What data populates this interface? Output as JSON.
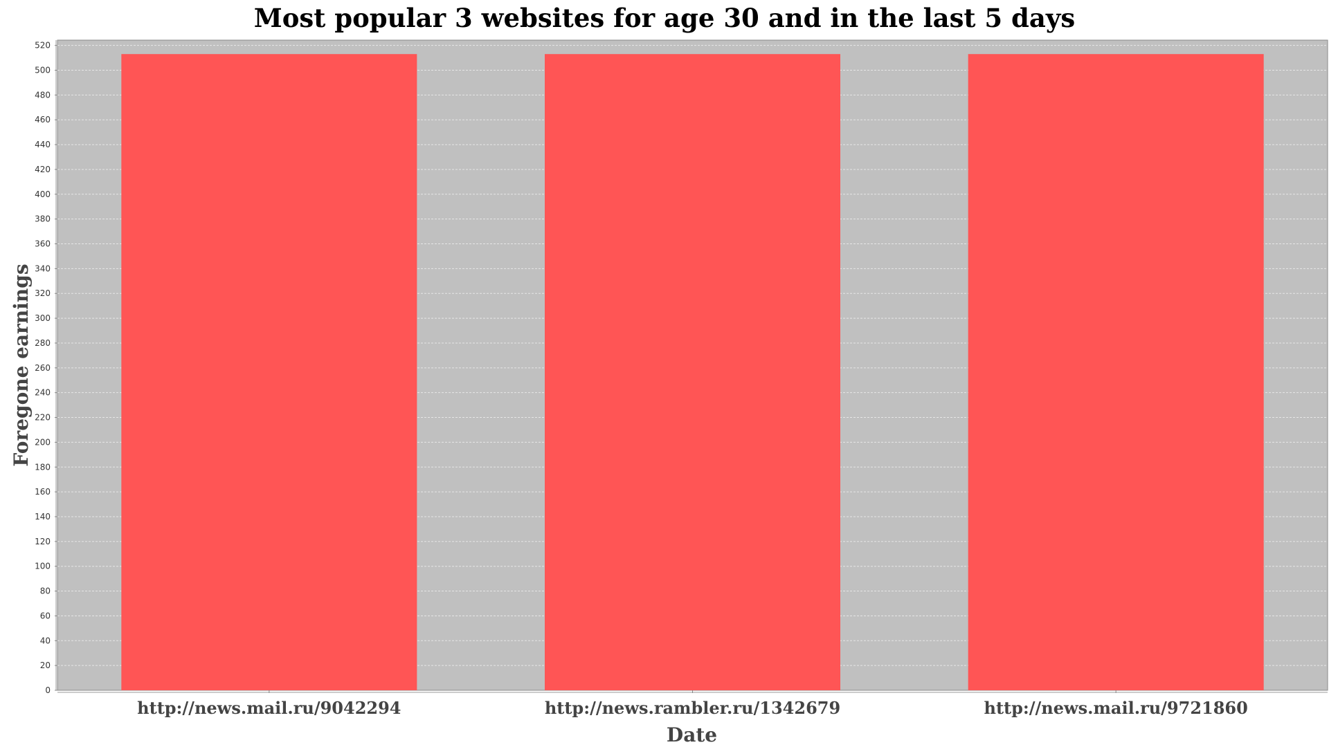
{
  "chart_data": {
    "type": "bar",
    "title": "Most popular 3 websites for age 30 and in the last 5 days",
    "xlabel": "Date",
    "ylabel": "Foregone earnings",
    "categories": [
      "http://news.mail.ru/9042294",
      "http://news.rambler.ru/1342679",
      "http://news.mail.ru/9721860"
    ],
    "values": [
      513,
      513,
      513
    ],
    "ylim": [
      0,
      520
    ],
    "y_tick_step": 20,
    "grid": true,
    "legend": "none",
    "colors": {
      "bar": "#ff5555",
      "plot_background": "#c0c0c0",
      "gridline": "#e6e6e6"
    }
  }
}
